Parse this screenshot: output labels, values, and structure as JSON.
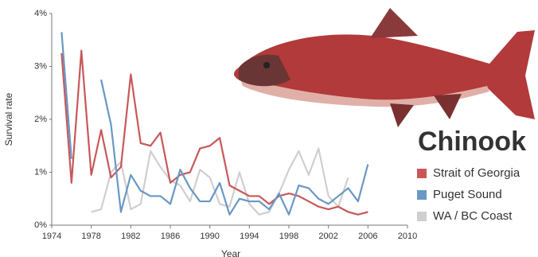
{
  "chart_data": {
    "type": "line",
    "y_label": "Survival rate",
    "x_label": "Year",
    "legend_title": "Chinook",
    "x": [
      1975,
      1976,
      1977,
      1978,
      1979,
      1980,
      1981,
      1982,
      1983,
      1984,
      1985,
      1986,
      1987,
      1988,
      1989,
      1990,
      1991,
      1992,
      1993,
      1994,
      1995,
      1996,
      1997,
      1998,
      1999,
      2000,
      2001,
      2002,
      2003,
      2004,
      2005,
      2006
    ],
    "series": [
      {
        "name": "Strait of Georgia",
        "color": "#c8585a",
        "values": [
          3.25,
          0.8,
          3.3,
          0.95,
          1.8,
          0.9,
          1.1,
          2.85,
          1.55,
          1.5,
          1.75,
          0.8,
          0.95,
          1.0,
          1.45,
          1.5,
          1.65,
          0.75,
          0.65,
          0.55,
          0.55,
          0.4,
          0.55,
          0.6,
          0.55,
          0.45,
          0.35,
          0.3,
          0.35,
          0.25,
          0.2,
          0.25
        ]
      },
      {
        "name": "Puget Sound",
        "color": "#6a97c4",
        "values": [
          3.65,
          1.25,
          null,
          null,
          2.75,
          1.9,
          0.25,
          0.95,
          0.65,
          0.55,
          0.55,
          0.4,
          1.05,
          0.7,
          0.45,
          0.45,
          0.8,
          0.2,
          0.5,
          0.45,
          0.45,
          0.3,
          0.6,
          0.2,
          0.75,
          0.7,
          0.5,
          0.4,
          0.55,
          0.7,
          0.45,
          1.15
        ]
      },
      {
        "name": "WA / BC Coast",
        "color": "#cfcfcf",
        "values": [
          null,
          null,
          null,
          0.25,
          0.3,
          1.0,
          1.2,
          0.3,
          0.4,
          1.4,
          1.1,
          0.85,
          0.75,
          0.45,
          1.05,
          0.9,
          0.4,
          0.35,
          1.0,
          0.4,
          0.2,
          0.25,
          0.6,
          1.05,
          1.4,
          0.95,
          1.45,
          0.55,
          0.35,
          0.9,
          null,
          null
        ]
      }
    ],
    "xlim": [
      1974,
      2010
    ],
    "xticks": [
      1974,
      1978,
      1982,
      1986,
      1990,
      1994,
      1998,
      2002,
      2006,
      2010
    ],
    "ylim": [
      0,
      4
    ],
    "yticks": [
      {
        "value": 0,
        "label": "0%"
      },
      {
        "value": 1,
        "label": "1%"
      },
      {
        "value": 2,
        "label": "2%"
      },
      {
        "value": 3,
        "label": "3%"
      },
      {
        "value": 4,
        "label": "4%"
      }
    ],
    "grid": false
  }
}
